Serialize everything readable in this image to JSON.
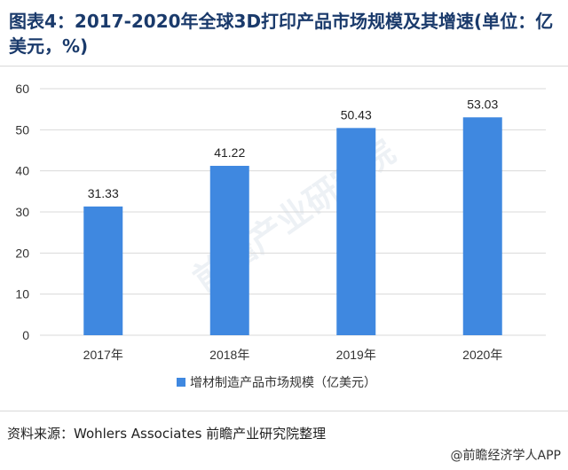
{
  "title": "图表4：2017-2020年全球3D打印产品市场规模及其增速(单位：亿美元，%)",
  "source": "资料来源：Wohlers Associates 前瞻产业研究院整理",
  "brand": "@前瞻经济学人APP",
  "watermark": "前瞻产业研究院",
  "colors": {
    "bar": "#3f88e0",
    "grid": "#d9d9d9",
    "title": "#1a3a6b"
  },
  "chart_data": {
    "type": "bar",
    "categories": [
      "2017年",
      "2018年",
      "2019年",
      "2020年"
    ],
    "series": [
      {
        "name": "增材制造产品市场规模（亿美元）",
        "values": [
          31.33,
          41.22,
          50.43,
          53.03
        ]
      }
    ],
    "ylim": [
      0,
      60
    ],
    "yticks": [
      0,
      10,
      20,
      30,
      40,
      50,
      60
    ],
    "grid": true,
    "legend": "bottom"
  }
}
